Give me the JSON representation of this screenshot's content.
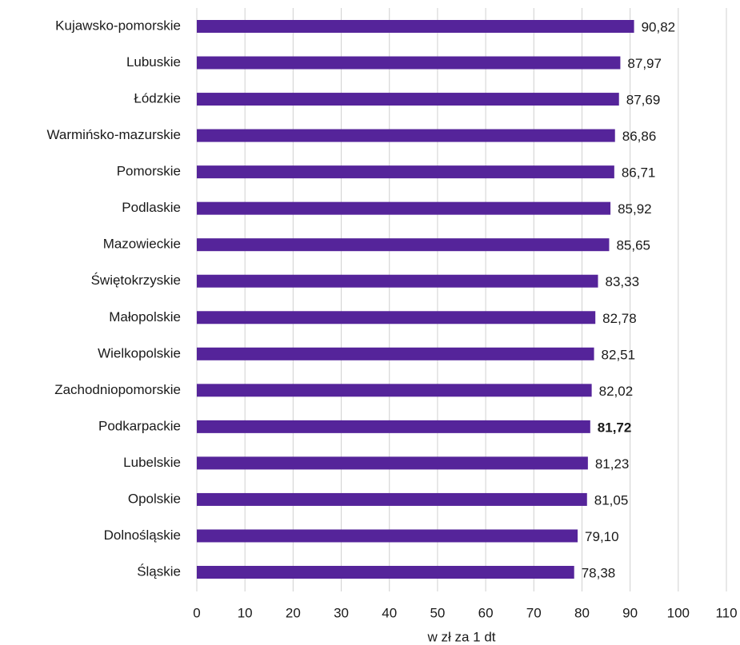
{
  "chart_data": {
    "type": "hbar",
    "categories": [
      "Kujawsko-pomorskie",
      "Lubuskie",
      "Łódzkie",
      "Warmińsko-mazurskie",
      "Pomorskie",
      "Podlaskie",
      "Mazowieckie",
      "Świętokrzyskie",
      "Małopolskie",
      "Wielkopolskie",
      "Zachodniopomorskie",
      "Podkarpackie",
      "Lubelskie",
      "Opolskie",
      "Dolnośląskie",
      "Śląskie"
    ],
    "values": [
      90.82,
      87.97,
      87.69,
      86.86,
      86.71,
      85.92,
      85.65,
      83.33,
      82.78,
      82.51,
      82.02,
      81.72,
      81.23,
      81.05,
      79.1,
      78.38
    ],
    "value_labels": [
      "90,82",
      "87,97",
      "87,69",
      "86,86",
      "86,71",
      "85,92",
      "85,65",
      "83,33",
      "82,78",
      "82,51",
      "82,02",
      "81,72",
      "81,23",
      "81,05",
      "79,10",
      "78,38"
    ],
    "highlight_index": 11,
    "color": "#55249a",
    "xlabel": "w zł za 1 dt",
    "xlim": [
      0,
      110
    ],
    "xticks": [
      0,
      10,
      20,
      30,
      40,
      50,
      60,
      70,
      80,
      90,
      100,
      110
    ],
    "grid": true
  }
}
